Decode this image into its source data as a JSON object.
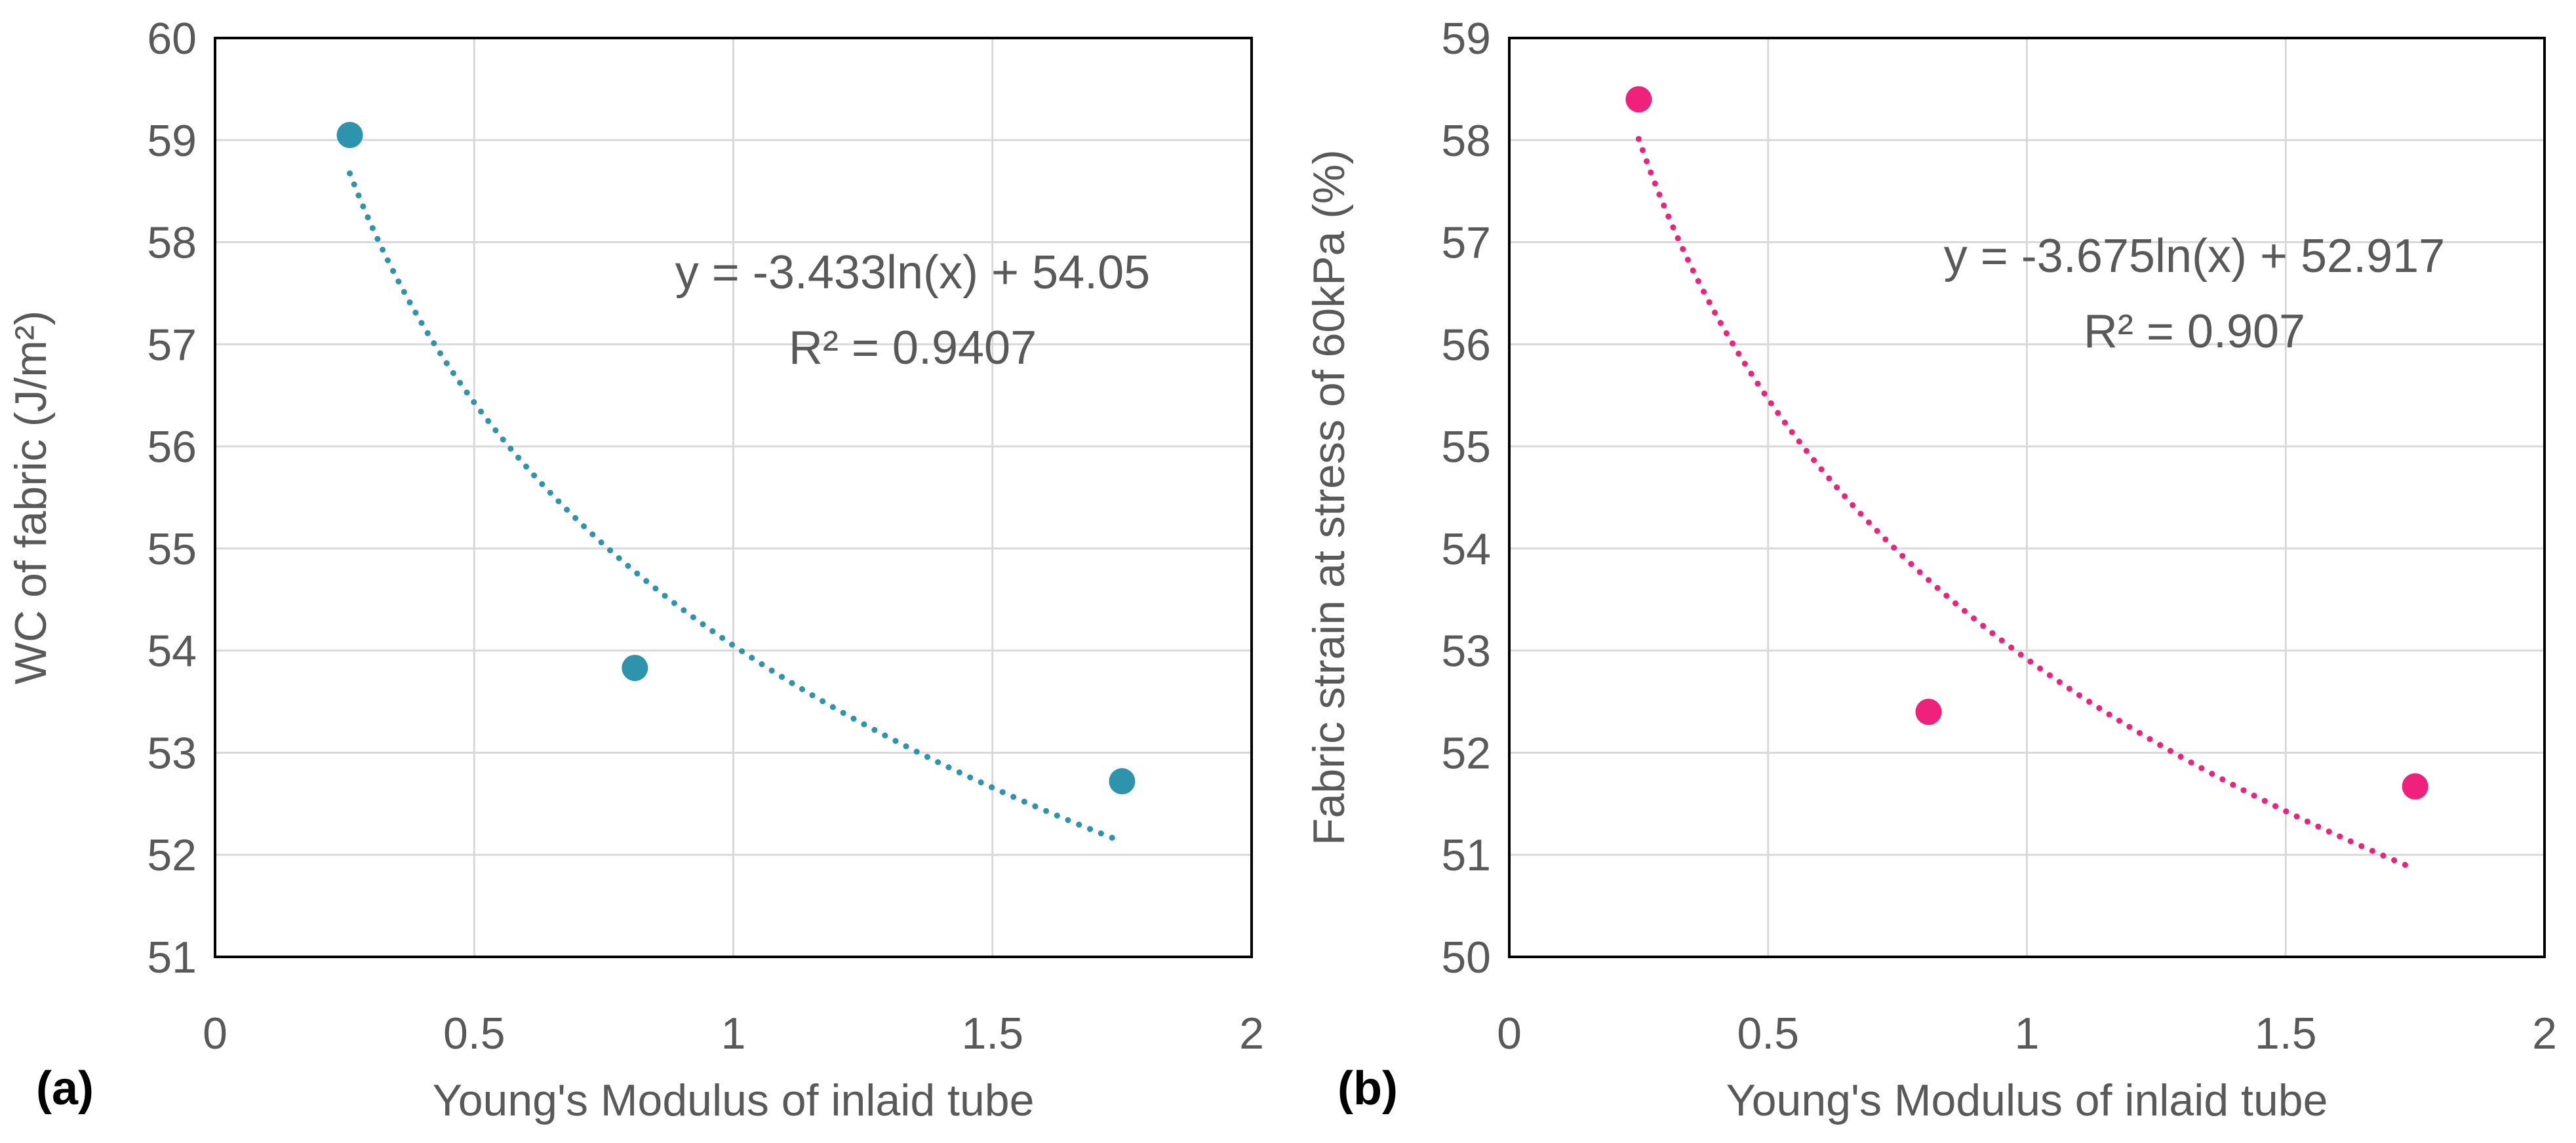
{
  "chart_data": [
    {
      "type": "scatter",
      "panel_label": "(a)",
      "xlabel": "Young's Modulus of inlaid tube",
      "ylabel": "WC of fabric (J/m²)",
      "xlim": [
        0,
        2
      ],
      "ylim": [
        51,
        60
      ],
      "x_ticks": [
        0,
        0.5,
        1,
        1.5,
        2
      ],
      "x_tick_labels": [
        "0",
        "0.5",
        "1",
        "1.5",
        "2"
      ],
      "y_ticks": [
        51,
        52,
        53,
        54,
        55,
        56,
        57,
        58,
        59,
        60
      ],
      "y_tick_labels": [
        "51",
        "52",
        "53",
        "54",
        "55",
        "56",
        "57",
        "58",
        "59",
        "60"
      ],
      "grid": true,
      "color": "#2E94AE",
      "points": [
        {
          "x": 0.26,
          "y": 59.05
        },
        {
          "x": 0.81,
          "y": 53.83
        },
        {
          "x": 1.75,
          "y": 52.72
        }
      ],
      "trendline": {
        "type": "log",
        "a": -3.433,
        "b": 54.05,
        "x_range": [
          0.26,
          1.75
        ],
        "equation": "y = -3.433ln(x) + 54.05",
        "r2": "R² = 0.9407"
      }
    },
    {
      "type": "scatter",
      "panel_label": "(b)",
      "xlabel": "Young's Modulus of inlaid tube",
      "ylabel": "Fabric strain at stress of 60kPa (%)",
      "xlim": [
        0,
        2
      ],
      "ylim": [
        50,
        59
      ],
      "x_ticks": [
        0,
        0.5,
        1,
        1.5,
        2
      ],
      "x_tick_labels": [
        "0",
        "0.5",
        "1",
        "1.5",
        "2"
      ],
      "y_ticks": [
        50,
        51,
        52,
        53,
        54,
        55,
        56,
        57,
        58,
        59
      ],
      "y_tick_labels": [
        "50",
        "51",
        "52",
        "53",
        "54",
        "55",
        "56",
        "57",
        "58",
        "59"
      ],
      "grid": true,
      "color": "#F0217A",
      "points": [
        {
          "x": 0.25,
          "y": 58.4
        },
        {
          "x": 0.81,
          "y": 52.4
        },
        {
          "x": 1.75,
          "y": 51.67
        }
      ],
      "trendline": {
        "type": "log",
        "a": -3.675,
        "b": 52.917,
        "x_range": [
          0.25,
          1.75
        ],
        "equation": "y = -3.675ln(x) + 52.917",
        "r2": "R² = 0.907"
      }
    }
  ]
}
